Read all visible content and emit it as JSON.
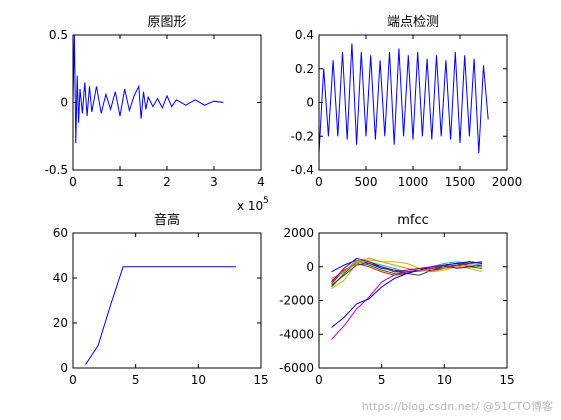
{
  "watermark": "https://blog.csdn.net/ @51CTO博客",
  "colors": {
    "axes": "#000000",
    "line": "#0000ff",
    "background": "#ffffff"
  },
  "chart_data": [
    {
      "type": "line",
      "title": "原图形",
      "xlim": [
        0,
        400000
      ],
      "ylim": [
        -0.5,
        0.5
      ],
      "xticks": [
        "0",
        "1",
        "2",
        "3",
        "4"
      ],
      "yticks": [
        "-0.5",
        "0",
        "0.5"
      ],
      "x_multiplier": "x 10",
      "x_multiplier_exp": "5",
      "series": [
        {
          "color": "#0000ff",
          "x": [
            0,
            3000,
            6000,
            9000,
            12000,
            15000,
            20000,
            25000,
            30000,
            35000,
            40000,
            50000,
            60000,
            70000,
            80000,
            90000,
            100000,
            110000,
            120000,
            130000,
            140000,
            145000,
            150000,
            155000,
            160000,
            170000,
            180000,
            190000,
            200000,
            210000,
            220000,
            240000,
            260000,
            280000,
            300000,
            320000
          ],
          "y": [
            0,
            0.5,
            -0.3,
            0.2,
            -0.15,
            0.1,
            -0.08,
            0.15,
            -0.1,
            0.12,
            -0.07,
            0.12,
            -0.08,
            0.06,
            -0.05,
            0.08,
            -0.1,
            0.1,
            -0.06,
            0.05,
            0.12,
            -0.12,
            0.08,
            -0.05,
            0.04,
            -0.03,
            0.03,
            -0.04,
            0.05,
            -0.03,
            0.02,
            -0.02,
            0.02,
            -0.02,
            0.01,
            0
          ]
        }
      ]
    },
    {
      "type": "line",
      "title": "端点检测",
      "xlim": [
        0,
        2000
      ],
      "ylim": [
        -0.4,
        0.4
      ],
      "xticks": [
        "0",
        "500",
        "1000",
        "1500",
        "2000"
      ],
      "yticks": [
        "-0.4",
        "-0.2",
        "0",
        "0.2",
        "0.4"
      ],
      "series": [
        {
          "color": "#0000ff",
          "x": [
            0,
            50,
            100,
            150,
            200,
            250,
            300,
            350,
            400,
            450,
            500,
            550,
            600,
            650,
            700,
            750,
            800,
            850,
            900,
            950,
            1000,
            1050,
            1100,
            1150,
            1200,
            1250,
            1300,
            1350,
            1400,
            1450,
            1500,
            1550,
            1600,
            1650,
            1700,
            1750,
            1800
          ],
          "y": [
            -0.3,
            0.2,
            -0.2,
            0.25,
            -0.2,
            0.3,
            -0.22,
            0.35,
            -0.25,
            0.3,
            -0.2,
            0.28,
            -0.22,
            0.25,
            -0.2,
            0.3,
            -0.25,
            0.32,
            -0.2,
            0.28,
            -0.22,
            0.3,
            -0.2,
            0.26,
            -0.22,
            0.28,
            -0.2,
            0.25,
            -0.22,
            0.3,
            -0.24,
            0.28,
            -0.2,
            0.26,
            -0.3,
            0.22,
            -0.1
          ]
        }
      ]
    },
    {
      "type": "line",
      "title": "音高",
      "xlim": [
        0,
        15
      ],
      "ylim": [
        0,
        60
      ],
      "xticks": [
        "0",
        "5",
        "10",
        "15"
      ],
      "yticks": [
        "0",
        "20",
        "40",
        "60"
      ],
      "series": [
        {
          "color": "#0000ff",
          "x": [
            1,
            2,
            3,
            4,
            5,
            6,
            7,
            8,
            9,
            10,
            11,
            12,
            13
          ],
          "y": [
            1.5,
            10,
            28,
            45,
            45,
            45,
            45,
            45,
            45,
            45,
            45,
            45,
            45
          ]
        }
      ]
    },
    {
      "type": "line",
      "title": "mfcc",
      "xlim": [
        0,
        15
      ],
      "ylim": [
        -6000,
        2000
      ],
      "xticks": [
        "0",
        "5",
        "10",
        "15"
      ],
      "yticks": [
        "-6000",
        "-4000",
        "-2000",
        "0",
        "2000"
      ],
      "series": [
        {
          "color": "#0000ff",
          "x": [
            1,
            2,
            3,
            4,
            5,
            6,
            7,
            8,
            9,
            10,
            11,
            12,
            13
          ],
          "y": [
            -300,
            100,
            400,
            200,
            -100,
            -200,
            -300,
            -250,
            -200,
            -100,
            100,
            300,
            200
          ]
        },
        {
          "color": "#008000",
          "x": [
            1,
            2,
            3,
            4,
            5,
            6,
            7,
            8,
            9,
            10,
            11,
            12,
            13
          ],
          "y": [
            -1200,
            -400,
            300,
            100,
            -200,
            -400,
            -300,
            -200,
            -100,
            0,
            100,
            0,
            -100
          ]
        },
        {
          "color": "#ff0000",
          "x": [
            1,
            2,
            3,
            4,
            5,
            6,
            7,
            8,
            9,
            10,
            11,
            12,
            13
          ],
          "y": [
            -1000,
            -200,
            200,
            0,
            -300,
            -500,
            -400,
            -200,
            -100,
            100,
            200,
            100,
            0
          ]
        },
        {
          "color": "#00bfbf",
          "x": [
            1,
            2,
            3,
            4,
            5,
            6,
            7,
            8,
            9,
            10,
            11,
            12,
            13
          ],
          "y": [
            -800,
            -300,
            400,
            300,
            100,
            -100,
            -300,
            -200,
            0,
            200,
            300,
            200,
            100
          ]
        },
        {
          "color": "#bf00bf",
          "x": [
            1,
            2,
            3,
            4,
            5,
            6,
            7,
            8,
            9,
            10,
            11,
            12,
            13
          ],
          "y": [
            -4300,
            -3500,
            -2500,
            -1800,
            -900,
            -500,
            -300,
            -200,
            -100,
            100,
            200,
            100,
            0
          ]
        },
        {
          "color": "#bfbf00",
          "x": [
            1,
            2,
            3,
            4,
            5,
            6,
            7,
            8,
            9,
            10,
            11,
            12,
            13
          ],
          "y": [
            -1300,
            -800,
            200,
            400,
            300,
            300,
            200,
            -100,
            -300,
            -200,
            0,
            -100,
            -300
          ]
        },
        {
          "color": "#404040",
          "x": [
            1,
            2,
            3,
            4,
            5,
            6,
            7,
            8,
            9,
            10,
            11,
            12,
            13
          ],
          "y": [
            -1100,
            -500,
            100,
            200,
            0,
            -200,
            -400,
            -500,
            -200,
            0,
            100,
            200,
            300
          ]
        },
        {
          "color": "#0000bf",
          "x": [
            1,
            2,
            3,
            4,
            5,
            6,
            7,
            8,
            9,
            10,
            11,
            12,
            13
          ],
          "y": [
            -3600,
            -3000,
            -2200,
            -1900,
            -1200,
            -700,
            -400,
            -200,
            0,
            100,
            200,
            300,
            200
          ]
        },
        {
          "color": "#ff8000",
          "x": [
            1,
            2,
            3,
            4,
            5,
            6,
            7,
            8,
            9,
            10,
            11,
            12,
            13
          ],
          "y": [
            -700,
            -300,
            300,
            500,
            300,
            100,
            -100,
            -200,
            -300,
            -100,
            0,
            100,
            0
          ]
        },
        {
          "color": "#800080",
          "x": [
            1,
            2,
            3,
            4,
            5,
            6,
            7,
            8,
            9,
            10,
            11,
            12,
            13
          ],
          "y": [
            -900,
            -100,
            500,
            300,
            0,
            -300,
            -200,
            -100,
            0,
            100,
            -100,
            0,
            100
          ]
        }
      ]
    }
  ]
}
